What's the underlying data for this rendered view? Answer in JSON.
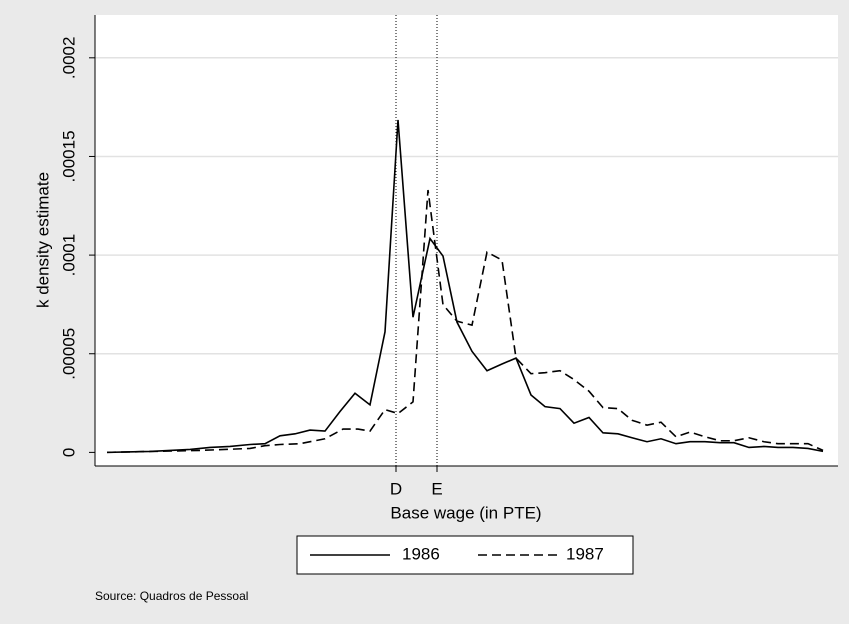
{
  "chart_data": {
    "type": "line",
    "xlabel": "Base wage (in PTE)",
    "ylabel": "k density estimate",
    "source": "Source: Quadros de Pessoal",
    "xlim": [
      -1.2,
      73.1
    ],
    "xticks": [
      {
        "value": 28.9,
        "label": "D"
      },
      {
        "value": 33,
        "label": "E"
      }
    ],
    "ylim": [
      -6.9e-06,
      0.0002217
    ],
    "yticks": [
      0,
      {
        "value": 5e-05,
        "label": ".00005"
      },
      {
        "value": 0.0001,
        "label": ".0001"
      },
      {
        "value": 0.00015,
        "label": ".00015"
      },
      {
        "value": 0.0002,
        "label": ".0002"
      }
    ],
    "grid": true,
    "legend": "bottom",
    "series": [
      {
        "name": "1986",
        "color": "#000000",
        "dash": "solid",
        "x": [
          0,
          4.3,
          8.3,
          10.3,
          12.3,
          14.3,
          15.8,
          17.3,
          18.8,
          20.3,
          21.8,
          23.3,
          24.8,
          26.3,
          27.8,
          29.1,
          30.6,
          32.3,
          33.6,
          35,
          36.5,
          38,
          39.5,
          40.9,
          42.4,
          43.8,
          45.3,
          46.7,
          48.2,
          49.6,
          51.1,
          52.5,
          54,
          55.4,
          56.9,
          58.3,
          59.8,
          61.3,
          62.7,
          64.2,
          65.7,
          67.1,
          68.6,
          70.1,
          71.6
        ],
        "values": [
          0,
          5e-07,
          1.5e-06,
          2.5e-06,
          3e-06,
          4e-06,
          4.4e-06,
          8.4e-06,
          9.4e-06,
          1.13e-05,
          1.08e-05,
          2.07e-05,
          3e-05,
          2.41e-05,
          6.11e-05,
          0.0001685,
          6.85e-05,
          0.0001084,
          9.95e-05,
          6.6e-05,
          5.12e-05,
          4.14e-05,
          4.48e-05,
          4.78e-05,
          2.91e-05,
          2.32e-05,
          2.22e-05,
          1.48e-05,
          1.77e-05,
          9.9e-06,
          9.4e-06,
          7.4e-06,
          5.4e-06,
          6.9e-06,
          4.4e-06,
          5.4e-06,
          5.4e-06,
          4.9e-06,
          4.9e-06,
          2.5e-06,
          3e-06,
          2.5e-06,
          2.5e-06,
          2e-06,
          5e-07
        ]
      },
      {
        "name": "1987",
        "color": "#000000",
        "dash": "dashed",
        "x": [
          0,
          9.3,
          14.3,
          15.8,
          17.3,
          19.3,
          21.8,
          23.6,
          25.1,
          26.3,
          27.8,
          29.1,
          30.6,
          32.1,
          33.6,
          35,
          36.5,
          38,
          39.5,
          40.9,
          42.4,
          43.8,
          45.3,
          46.7,
          48.2,
          49.6,
          51.1,
          52.5,
          54,
          55.4,
          56.9,
          58.3,
          59.8,
          61.3,
          62.7,
          64.2,
          65.7,
          67.1,
          68.6,
          70.1,
          71.6
        ],
        "values": [
          0,
          1e-06,
          2e-06,
          3.4e-06,
          4e-06,
          4.4e-06,
          6.9e-06,
          1.18e-05,
          1.18e-05,
          1.08e-05,
          2.17e-05,
          1.97e-05,
          2.56e-05,
          0.000133,
          7.49e-05,
          6.65e-05,
          6.45e-05,
          0.0001015,
          9.75e-05,
          4.78e-05,
          3.99e-05,
          4.04e-05,
          4.14e-05,
          3.69e-05,
          3.1e-05,
          2.27e-05,
          2.22e-05,
          1.63e-05,
          1.38e-05,
          1.53e-05,
          7.9e-06,
          1.03e-05,
          7.9e-06,
          5.9e-06,
          5.9e-06,
          7.4e-06,
          5.4e-06,
          4.4e-06,
          4.4e-06,
          4.4e-06,
          1e-06
        ]
      }
    ]
  }
}
